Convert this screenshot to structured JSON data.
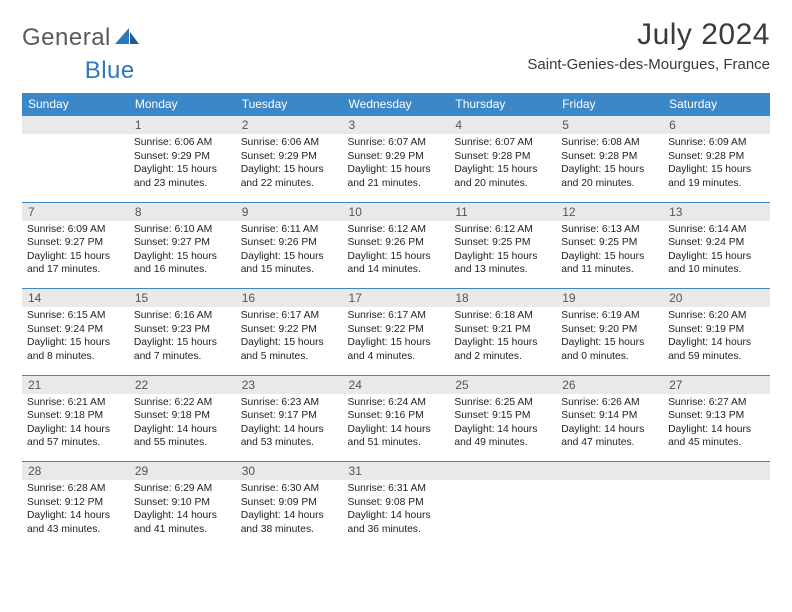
{
  "brand": {
    "text1": "General",
    "text2": "Blue"
  },
  "title": "July 2024",
  "location": "Saint-Genies-des-Mourgues, France",
  "colors": {
    "header_bg": "#3b87c8",
    "header_text": "#ffffff",
    "daynum_bg": "#e9e9e9",
    "daynum_text": "#555555",
    "brand_gray": "#5a5a5a",
    "brand_blue": "#2f77bd",
    "body_text": "#222222",
    "row_divider": "#3b87c8"
  },
  "weekdays": [
    "Sunday",
    "Monday",
    "Tuesday",
    "Wednesday",
    "Thursday",
    "Friday",
    "Saturday"
  ],
  "weeks": [
    {
      "nums": [
        "",
        "1",
        "2",
        "3",
        "4",
        "5",
        "6"
      ],
      "cells": [
        null,
        {
          "sunrise": "6:06 AM",
          "sunset": "9:29 PM",
          "daylight": "15 hours and 23 minutes."
        },
        {
          "sunrise": "6:06 AM",
          "sunset": "9:29 PM",
          "daylight": "15 hours and 22 minutes."
        },
        {
          "sunrise": "6:07 AM",
          "sunset": "9:29 PM",
          "daylight": "15 hours and 21 minutes."
        },
        {
          "sunrise": "6:07 AM",
          "sunset": "9:28 PM",
          "daylight": "15 hours and 20 minutes."
        },
        {
          "sunrise": "6:08 AM",
          "sunset": "9:28 PM",
          "daylight": "15 hours and 20 minutes."
        },
        {
          "sunrise": "6:09 AM",
          "sunset": "9:28 PM",
          "daylight": "15 hours and 19 minutes."
        }
      ]
    },
    {
      "nums": [
        "7",
        "8",
        "9",
        "10",
        "11",
        "12",
        "13"
      ],
      "cells": [
        {
          "sunrise": "6:09 AM",
          "sunset": "9:27 PM",
          "daylight": "15 hours and 17 minutes."
        },
        {
          "sunrise": "6:10 AM",
          "sunset": "9:27 PM",
          "daylight": "15 hours and 16 minutes."
        },
        {
          "sunrise": "6:11 AM",
          "sunset": "9:26 PM",
          "daylight": "15 hours and 15 minutes."
        },
        {
          "sunrise": "6:12 AM",
          "sunset": "9:26 PM",
          "daylight": "15 hours and 14 minutes."
        },
        {
          "sunrise": "6:12 AM",
          "sunset": "9:25 PM",
          "daylight": "15 hours and 13 minutes."
        },
        {
          "sunrise": "6:13 AM",
          "sunset": "9:25 PM",
          "daylight": "15 hours and 11 minutes."
        },
        {
          "sunrise": "6:14 AM",
          "sunset": "9:24 PM",
          "daylight": "15 hours and 10 minutes."
        }
      ]
    },
    {
      "nums": [
        "14",
        "15",
        "16",
        "17",
        "18",
        "19",
        "20"
      ],
      "cells": [
        {
          "sunrise": "6:15 AM",
          "sunset": "9:24 PM",
          "daylight": "15 hours and 8 minutes."
        },
        {
          "sunrise": "6:16 AM",
          "sunset": "9:23 PM",
          "daylight": "15 hours and 7 minutes."
        },
        {
          "sunrise": "6:17 AM",
          "sunset": "9:22 PM",
          "daylight": "15 hours and 5 minutes."
        },
        {
          "sunrise": "6:17 AM",
          "sunset": "9:22 PM",
          "daylight": "15 hours and 4 minutes."
        },
        {
          "sunrise": "6:18 AM",
          "sunset": "9:21 PM",
          "daylight": "15 hours and 2 minutes."
        },
        {
          "sunrise": "6:19 AM",
          "sunset": "9:20 PM",
          "daylight": "15 hours and 0 minutes."
        },
        {
          "sunrise": "6:20 AM",
          "sunset": "9:19 PM",
          "daylight": "14 hours and 59 minutes."
        }
      ]
    },
    {
      "nums": [
        "21",
        "22",
        "23",
        "24",
        "25",
        "26",
        "27"
      ],
      "cells": [
        {
          "sunrise": "6:21 AM",
          "sunset": "9:18 PM",
          "daylight": "14 hours and 57 minutes."
        },
        {
          "sunrise": "6:22 AM",
          "sunset": "9:18 PM",
          "daylight": "14 hours and 55 minutes."
        },
        {
          "sunrise": "6:23 AM",
          "sunset": "9:17 PM",
          "daylight": "14 hours and 53 minutes."
        },
        {
          "sunrise": "6:24 AM",
          "sunset": "9:16 PM",
          "daylight": "14 hours and 51 minutes."
        },
        {
          "sunrise": "6:25 AM",
          "sunset": "9:15 PM",
          "daylight": "14 hours and 49 minutes."
        },
        {
          "sunrise": "6:26 AM",
          "sunset": "9:14 PM",
          "daylight": "14 hours and 47 minutes."
        },
        {
          "sunrise": "6:27 AM",
          "sunset": "9:13 PM",
          "daylight": "14 hours and 45 minutes."
        }
      ]
    },
    {
      "nums": [
        "28",
        "29",
        "30",
        "31",
        "",
        "",
        ""
      ],
      "cells": [
        {
          "sunrise": "6:28 AM",
          "sunset": "9:12 PM",
          "daylight": "14 hours and 43 minutes."
        },
        {
          "sunrise": "6:29 AM",
          "sunset": "9:10 PM",
          "daylight": "14 hours and 41 minutes."
        },
        {
          "sunrise": "6:30 AM",
          "sunset": "9:09 PM",
          "daylight": "14 hours and 38 minutes."
        },
        {
          "sunrise": "6:31 AM",
          "sunset": "9:08 PM",
          "daylight": "14 hours and 36 minutes."
        },
        null,
        null,
        null
      ]
    }
  ],
  "labels": {
    "sunrise": "Sunrise:",
    "sunset": "Sunset:",
    "daylight": "Daylight:"
  }
}
